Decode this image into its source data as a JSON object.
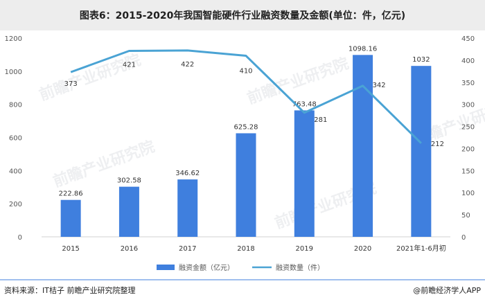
{
  "footer": {
    "source": "资料来源：IT桔子 前瞻产业研究院整理",
    "brand": "@前瞻经济学人APP"
  },
  "watermark": {
    "text": "前瞻产业研究院"
  },
  "colors": {
    "bar": "#3f7fde",
    "line": "#4aa3d4",
    "title_bar": "#ededed",
    "footer_line": "#3f7fde"
  },
  "chart_data": {
    "type": "bar",
    "title": "图表6：2015-2020年我国智能硬件行业融资数量及金额(单位：件，亿元)",
    "categories": [
      "2015",
      "2016",
      "2017",
      "2018",
      "2019",
      "2020",
      "2021年1-6月初"
    ],
    "series": [
      {
        "name": "融资金额（亿元）",
        "type": "bar",
        "axis": "left",
        "values": [
          222.86,
          302.58,
          346.62,
          625.28,
          763.48,
          1098.16,
          1032
        ],
        "labels": [
          "222.86",
          "302.58",
          "346.62",
          "625.28",
          "763.48",
          "1098.16",
          "1032"
        ]
      },
      {
        "name": "融资数量（件）",
        "type": "line",
        "axis": "right",
        "values": [
          373,
          421,
          422,
          410,
          281,
          342,
          212
        ],
        "labels": [
          "373",
          "421",
          "422",
          "410",
          "281",
          "342",
          "212"
        ]
      }
    ],
    "y_left": {
      "min": 0,
      "max": 1200,
      "ticks": [
        "0",
        "200",
        "400",
        "600",
        "800",
        "1000",
        "1200"
      ]
    },
    "y_right": {
      "min": 0,
      "max": 450,
      "ticks": [
        "0",
        "50",
        "100",
        "150",
        "200",
        "250",
        "300",
        "350",
        "400",
        "450"
      ]
    },
    "grid": false,
    "legend": "bottom"
  }
}
